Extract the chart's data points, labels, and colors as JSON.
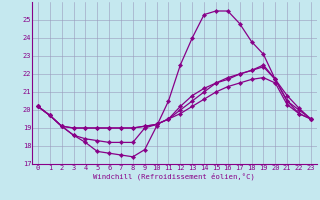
{
  "xlabel": "Windchill (Refroidissement éolien,°C)",
  "xlim_min": -0.5,
  "xlim_max": 23.5,
  "ylim_min": 17,
  "ylim_max": 26,
  "yticks": [
    17,
    18,
    19,
    20,
    21,
    22,
    23,
    24,
    25
  ],
  "xticks": [
    0,
    1,
    2,
    3,
    4,
    5,
    6,
    7,
    8,
    9,
    10,
    11,
    12,
    13,
    14,
    15,
    16,
    17,
    18,
    19,
    20,
    21,
    22,
    23
  ],
  "bg_color": "#c5e8ef",
  "line_color": "#880088",
  "grid_color": "#9999bb",
  "line1_x": [
    0,
    1,
    2,
    3,
    4,
    5,
    6,
    7,
    8,
    9,
    10,
    11,
    12,
    13,
    14,
    15,
    16,
    17,
    18,
    19,
    20,
    21,
    22,
    23
  ],
  "line1_y": [
    20.2,
    19.7,
    19.1,
    18.6,
    18.2,
    17.7,
    17.6,
    17.5,
    17.4,
    17.8,
    19.1,
    20.5,
    22.5,
    24.0,
    25.3,
    25.5,
    25.5,
    24.8,
    23.8,
    23.1,
    21.7,
    20.8,
    20.1,
    19.5
  ],
  "line2_x": [
    0,
    1,
    2,
    3,
    4,
    5,
    6,
    7,
    8,
    9,
    10,
    11,
    12,
    13,
    14,
    15,
    16,
    17,
    18,
    19,
    20,
    21,
    22,
    23
  ],
  "line2_y": [
    20.2,
    19.7,
    19.1,
    19.0,
    19.0,
    19.0,
    19.0,
    19.0,
    19.0,
    19.1,
    19.2,
    19.5,
    20.0,
    20.5,
    21.0,
    21.5,
    21.7,
    22.0,
    22.2,
    22.5,
    21.7,
    20.5,
    20.0,
    19.5
  ],
  "line3_x": [
    0,
    1,
    2,
    3,
    4,
    5,
    6,
    7,
    8,
    9,
    10,
    11,
    12,
    13,
    14,
    15,
    16,
    17,
    18,
    19,
    20,
    21,
    22,
    23
  ],
  "line3_y": [
    20.2,
    19.7,
    19.1,
    18.6,
    18.4,
    18.3,
    18.2,
    18.2,
    18.2,
    19.0,
    19.2,
    19.5,
    20.2,
    20.8,
    21.2,
    21.5,
    21.8,
    22.0,
    22.2,
    22.4,
    21.7,
    20.5,
    19.8,
    19.5
  ],
  "line4_x": [
    0,
    1,
    2,
    3,
    4,
    5,
    6,
    7,
    8,
    9,
    10,
    11,
    12,
    13,
    14,
    15,
    16,
    17,
    18,
    19,
    20,
    21,
    22,
    23
  ],
  "line4_y": [
    20.2,
    19.7,
    19.1,
    19.0,
    19.0,
    19.0,
    19.0,
    19.0,
    19.0,
    19.1,
    19.2,
    19.5,
    19.8,
    20.2,
    20.6,
    21.0,
    21.3,
    21.5,
    21.7,
    21.8,
    21.5,
    20.3,
    19.8,
    19.5
  ]
}
